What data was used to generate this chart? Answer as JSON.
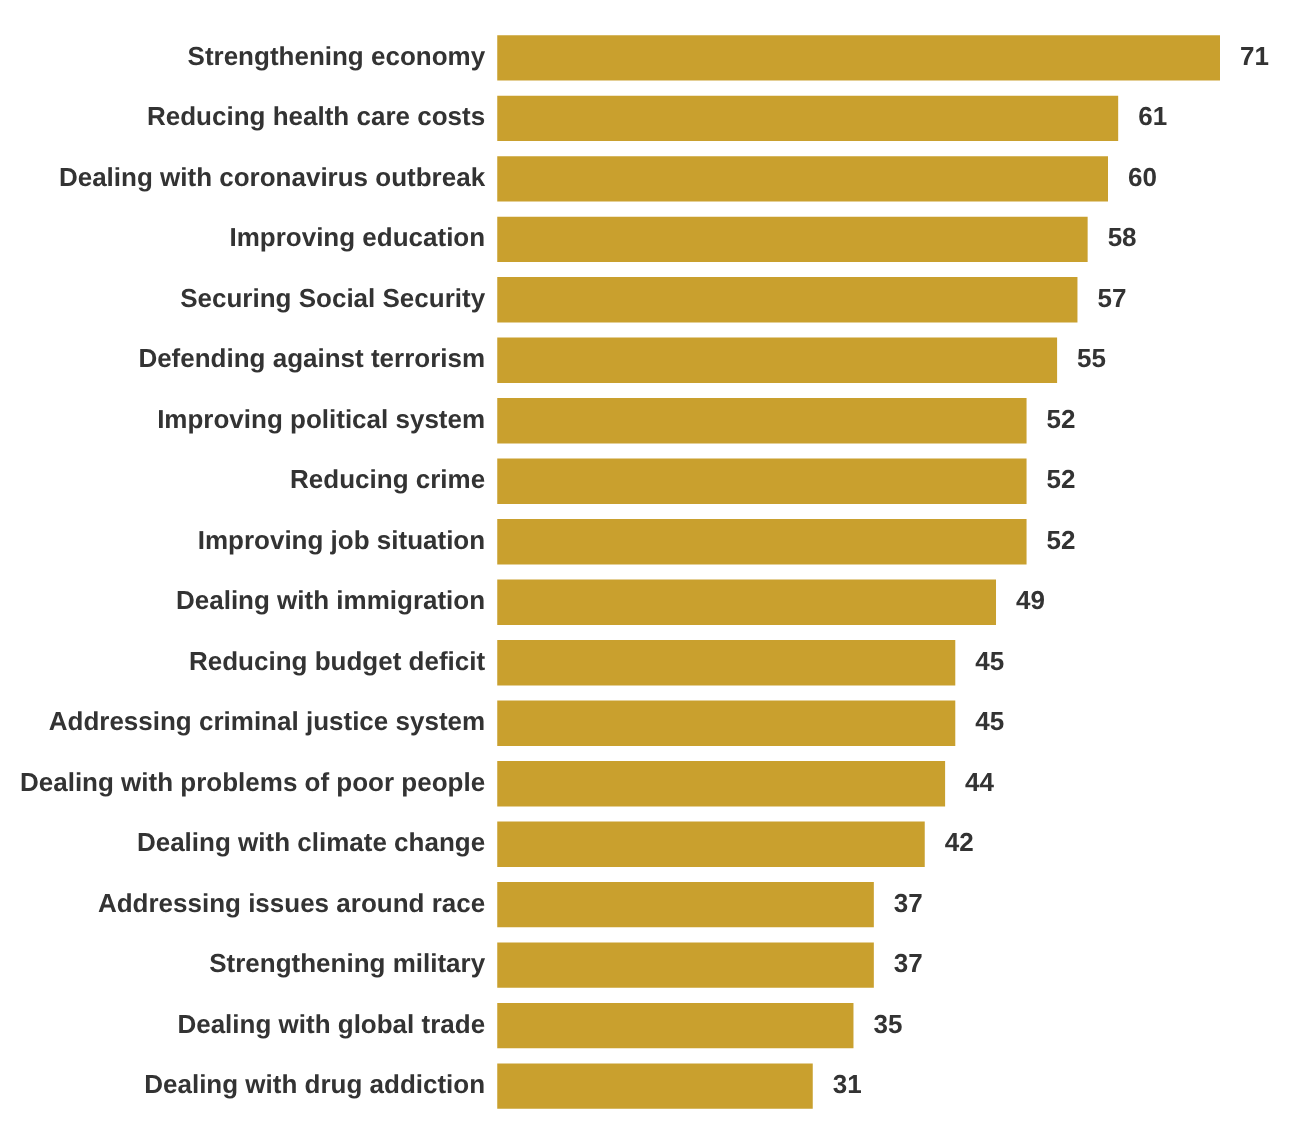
{
  "chart_data": {
    "type": "bar",
    "orientation": "horizontal",
    "data_labels": true,
    "grid": false,
    "legend": false,
    "color": "#c9a02e",
    "categories": [
      "Strengthening economy",
      "Reducing health care costs",
      "Dealing with coronavirus outbreak",
      "Improving education",
      "Securing Social Security",
      "Defending against terrorism",
      "Improving political system",
      "Reducing crime",
      "Improving job situation",
      "Dealing with immigration",
      "Reducing budget deficit",
      "Addressing criminal justice system",
      "Dealing with problems of poor people",
      "Dealing with climate change",
      "Addressing issues around race",
      "Strengthening military",
      "Dealing with global trade",
      "Dealing with drug addiction"
    ],
    "values": [
      71,
      61,
      60,
      58,
      57,
      55,
      52,
      52,
      52,
      49,
      45,
      45,
      44,
      42,
      37,
      37,
      35,
      31
    ],
    "tick_labels": "y"
  }
}
